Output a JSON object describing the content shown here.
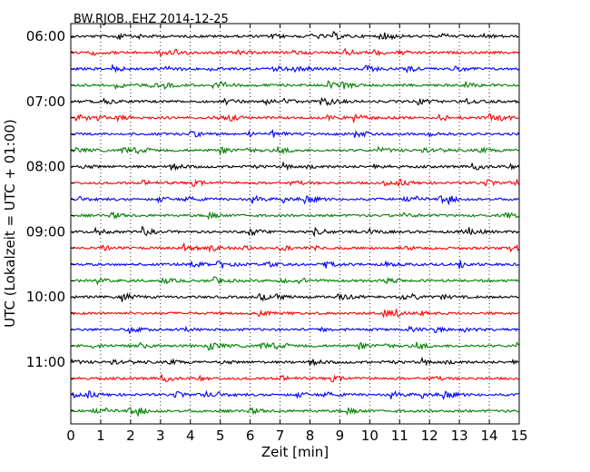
{
  "chart_data": {
    "type": "line",
    "title": "BW.RJOB..EHZ 2014-12-25",
    "xlabel": "Zeit  [min]",
    "ylabel": "UTC (Lokalzeit = UTC + 01:00)",
    "xlim": [
      0,
      15
    ],
    "x_ticks": [
      "0",
      "1",
      "2",
      "3",
      "4",
      "5",
      "6",
      "7",
      "8",
      "9",
      "10",
      "11",
      "12",
      "13",
      "14",
      "15"
    ],
    "y_tick_labels": [
      "06:00",
      "07:00",
      "08:00",
      "09:00",
      "10:00",
      "11:00"
    ],
    "grid": "vertical dotted",
    "line_count": 24,
    "minutes_per_line": 15,
    "start_time": "06:00",
    "colors": [
      "#000000",
      "#ff0000",
      "#0000ff",
      "#008000"
    ]
  }
}
